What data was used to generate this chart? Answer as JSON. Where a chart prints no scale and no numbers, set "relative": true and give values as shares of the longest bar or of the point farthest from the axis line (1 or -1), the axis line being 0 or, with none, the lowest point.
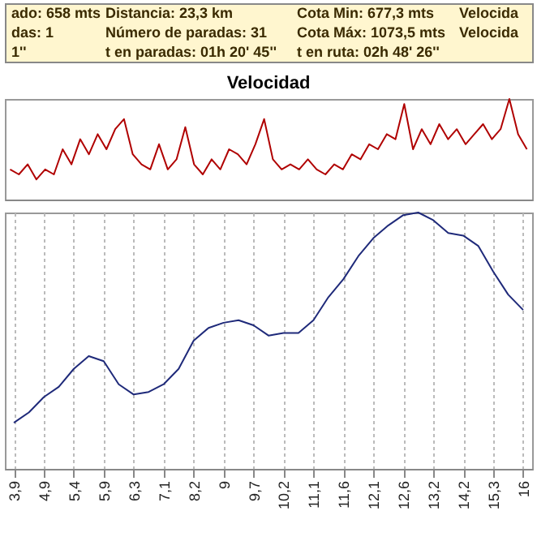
{
  "chart_data": [
    {
      "type": "other",
      "annotations": [
        "ado: 658 mts",
        "Distancia: 23,3 km",
        "Cota Min: 677,3 mts",
        "Velocida",
        "das: 1",
        "Número de paradas: 31",
        "Cota Máx: 1073,5 mts",
        "Velocida",
        "1''",
        "t en paradas: 01h 20' 45''",
        "t en ruta: 02h 48' 26''"
      ]
    },
    {
      "type": "line",
      "title": "Velocidad",
      "relative": true,
      "tick_labels": false,
      "color": "#b00000",
      "categories": [
        null,
        null,
        null,
        null,
        null,
        null,
        null,
        null,
        null,
        null,
        null,
        null,
        null,
        null,
        null,
        null,
        null,
        null,
        null,
        null,
        null,
        null,
        null,
        null,
        null,
        null,
        null,
        null,
        null,
        null,
        null,
        null,
        null,
        null,
        null,
        null,
        null,
        null,
        null,
        null,
        null,
        null,
        null,
        null,
        null,
        null,
        null,
        null,
        null,
        null,
        null,
        null,
        null,
        null,
        null,
        null,
        null,
        null,
        null,
        null
      ],
      "values": [
        0.3,
        0.25,
        0.35,
        0.2,
        0.3,
        0.25,
        0.5,
        0.35,
        0.6,
        0.45,
        0.65,
        0.5,
        0.7,
        0.8,
        0.45,
        0.35,
        0.3,
        0.55,
        0.3,
        0.4,
        0.72,
        0.35,
        0.25,
        0.4,
        0.3,
        0.5,
        0.45,
        0.35,
        0.55,
        0.8,
        0.4,
        0.3,
        0.35,
        0.3,
        0.4,
        0.3,
        0.25,
        0.35,
        0.3,
        0.45,
        0.4,
        0.55,
        0.5,
        0.65,
        0.6,
        0.95,
        0.5,
        0.7,
        0.55,
        0.75,
        0.6,
        0.7,
        0.55,
        0.65,
        0.75,
        0.6,
        0.7,
        1,
        0.65,
        0.5
      ]
    },
    {
      "type": "line",
      "relative": true,
      "tick_labels": "x",
      "grid": "x",
      "color": "#1f2a7a",
      "categories": [
        "3,9",
        null,
        "4,9",
        null,
        "5,4",
        null,
        "5,9",
        null,
        "6,3",
        null,
        "7,1",
        null,
        "8,2",
        null,
        "9",
        null,
        "9,7",
        null,
        "10,2",
        null,
        "11,1",
        null,
        "11,6",
        null,
        "12,1",
        null,
        "12,6",
        null,
        "13,2",
        null,
        "14,2",
        null,
        "15,3",
        null,
        "16"
      ],
      "values": [
        0.18,
        0.22,
        0.28,
        0.32,
        0.39,
        0.44,
        0.42,
        0.33,
        0.29,
        0.3,
        0.33,
        0.39,
        0.5,
        0.55,
        0.57,
        0.58,
        0.56,
        0.52,
        0.53,
        0.53,
        0.58,
        0.67,
        0.74,
        0.83,
        0.9,
        0.95,
        0.99,
        1,
        0.97,
        0.92,
        0.91,
        0.87,
        0.77,
        0.68,
        0.62
      ]
    }
  ]
}
